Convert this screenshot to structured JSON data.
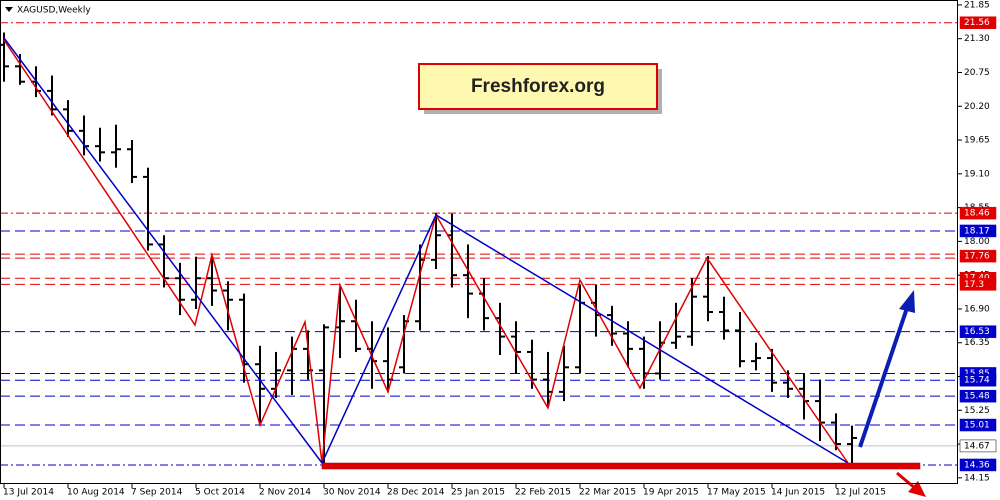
{
  "chart_data": {
    "type": "ohlc",
    "title": "XAGUSD,Weekly",
    "watermark": "Freshforex.org",
    "bar_color": "#000000",
    "categories": [
      "13 Jul 2014",
      null,
      null,
      null,
      "10 Aug 2014",
      null,
      null,
      null,
      "7 Sep 2014",
      null,
      null,
      null,
      "5 Oct 2014",
      null,
      null,
      null,
      "2 Nov 2014",
      null,
      null,
      null,
      "30 Nov 2014",
      null,
      null,
      null,
      "28 Dec 2014",
      null,
      null,
      null,
      "25 Jan 2015",
      null,
      null,
      null,
      "22 Feb 2015",
      null,
      null,
      null,
      "22 Mar 2015",
      null,
      null,
      null,
      "19 Apr 2015",
      null,
      null,
      null,
      "17 May 2015",
      null,
      null,
      null,
      "14 Jun 2015",
      null,
      null,
      null,
      "12 Jul 2015",
      null
    ],
    "open": [
      21.2,
      20.85,
      20.6,
      20.45,
      20.15,
      19.8,
      19.55,
      19.45,
      19.5,
      19.05,
      17.95,
      17.4,
      17.05,
      17.4,
      17.2,
      17.05,
      16.0,
      15.6,
      15.9,
      16.25,
      15.9,
      16.6,
      16.7,
      16.25,
      16.05,
      15.95,
      16.7,
      17.7,
      18.1,
      17.45,
      17.15,
      16.75,
      16.45,
      16.2,
      15.75,
      15.55,
      15.95,
      17.0,
      16.8,
      16.5,
      16.25,
      15.85,
      16.35,
      16.45,
      17.1,
      16.85,
      16.55,
      16.05,
      16.1,
      15.7,
      15.6,
      15.4,
      15.05,
      14.7
    ],
    "high": [
      21.4,
      21.05,
      20.85,
      20.7,
      20.3,
      20.05,
      19.85,
      19.9,
      19.65,
      19.2,
      18.1,
      17.65,
      17.75,
      17.75,
      17.35,
      17.15,
      16.3,
      16.2,
      16.45,
      16.55,
      16.65,
      17.25,
      17.05,
      16.7,
      16.6,
      16.8,
      17.95,
      18.46,
      18.45,
      17.95,
      17.4,
      17.0,
      16.7,
      16.4,
      16.2,
      16.3,
      17.3,
      17.3,
      16.95,
      16.7,
      16.45,
      16.7,
      17.0,
      17.4,
      17.76,
      17.1,
      16.85,
      16.35,
      16.25,
      15.9,
      15.85,
      15.75,
      15.2,
      15.0
    ],
    "low": [
      20.6,
      20.55,
      20.35,
      20.05,
      19.7,
      19.4,
      19.3,
      19.2,
      18.95,
      17.85,
      17.25,
      16.8,
      16.9,
      16.95,
      16.55,
      15.7,
      15.05,
      15.45,
      15.5,
      15.75,
      14.36,
      16.1,
      16.2,
      15.6,
      15.55,
      15.85,
      16.55,
      17.55,
      17.25,
      16.75,
      16.55,
      16.15,
      15.85,
      15.6,
      15.3,
      15.4,
      15.85,
      16.45,
      16.3,
      15.95,
      15.6,
      15.75,
      16.25,
      16.3,
      16.7,
      16.4,
      15.95,
      15.9,
      15.55,
      15.45,
      15.1,
      14.75,
      14.6,
      14.36
    ],
    "close": [
      20.85,
      20.6,
      20.45,
      20.15,
      19.8,
      19.55,
      19.45,
      19.5,
      19.05,
      17.95,
      17.4,
      17.05,
      17.4,
      17.2,
      17.05,
      16.0,
      15.6,
      15.9,
      16.25,
      15.9,
      16.6,
      16.7,
      16.25,
      16.05,
      15.75,
      16.7,
      17.7,
      18.1,
      17.45,
      17.15,
      16.75,
      16.45,
      16.2,
      15.75,
      15.55,
      15.95,
      17.0,
      16.8,
      16.5,
      16.25,
      15.85,
      16.35,
      16.45,
      17.1,
      16.85,
      16.55,
      16.05,
      16.1,
      15.7,
      15.6,
      15.4,
      15.05,
      14.7,
      14.8
    ],
    "ylim": [
      14.05,
      21.93
    ],
    "yticks": [
      21.85,
      {
        "value": 21.3,
        "label": "21.30"
      },
      20.75,
      {
        "value": 20.2,
        "label": "20.20"
      },
      19.65,
      {
        "value": 19.1,
        "label": "19.10"
      },
      18.55,
      {
        "value": 18.0,
        "label": "18.00"
      },
      17.45,
      {
        "value": 16.9,
        "label": "16.90"
      },
      16.35,
      {
        "value": 15.8,
        "label": "15.80"
      },
      15.25,
      {
        "value": 14.7,
        "label": "14.70"
      },
      14.15
    ],
    "levels": [
      {
        "value": 21.56,
        "color": "#e00000",
        "style": "dashdot"
      },
      {
        "value": 18.46,
        "color": "#e00000",
        "style": "dashdot"
      },
      {
        "value": 18.17,
        "color": "#0000c8",
        "style": "dash"
      },
      {
        "value": 17.76,
        "color": "#e00000",
        "style": "double"
      },
      {
        "value": 17.4,
        "label": "17.40",
        "color": "#e00000",
        "style": "dash"
      },
      {
        "value": 17.3,
        "color": "#e00000",
        "style": "dash"
      },
      {
        "value": 16.53,
        "color": "#0000c8",
        "style": "dash"
      },
      {
        "value": 15.85,
        "color": "#0000c8",
        "style": "dash"
      },
      {
        "value": 15.74,
        "color": "#0000c8",
        "style": "dash"
      },
      {
        "value": 15.48,
        "color": "#0000c8",
        "style": "dash"
      },
      {
        "value": 15.01,
        "color": "#0000c8",
        "style": "dash"
      },
      {
        "value": 14.67,
        "color": "#c0c0c0",
        "style": "solid"
      },
      {
        "value": 14.36,
        "color": "#0000c8",
        "style": "dashdot"
      }
    ]
  }
}
